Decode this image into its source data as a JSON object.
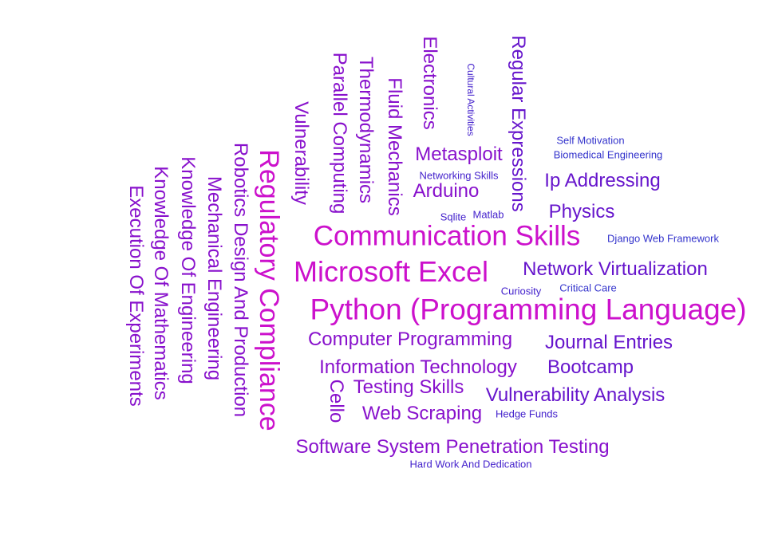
{
  "colors": {
    "magenta": "#cc11cc",
    "purple": "#8811cc",
    "violet": "#6615cc",
    "indigo": "#4422cc",
    "blue": "#3333cc"
  },
  "words": [
    {
      "text": "Python (Programming Language)",
      "size": 37,
      "color": "magenta",
      "vertical": false
    },
    {
      "text": "Communication Skills",
      "size": 35,
      "color": "magenta",
      "vertical": false
    },
    {
      "text": "Microsoft Excel",
      "size": 36,
      "color": "magenta",
      "vertical": false
    },
    {
      "text": "Regulatory Compliance",
      "size": 34,
      "color": "magenta",
      "vertical": true
    },
    {
      "text": "Computer Programming",
      "size": 24,
      "color": "purple",
      "vertical": false
    },
    {
      "text": "Information Technology",
      "size": 24,
      "color": "purple",
      "vertical": false
    },
    {
      "text": "Software System Penetration Testing",
      "size": 24,
      "color": "purple",
      "vertical": false
    },
    {
      "text": "Web Scraping",
      "size": 24,
      "color": "purple",
      "vertical": false
    },
    {
      "text": "Testing Skills",
      "size": 24,
      "color": "purple",
      "vertical": false
    },
    {
      "text": "Robotics Design And Production",
      "size": 24,
      "color": "purple",
      "vertical": true
    },
    {
      "text": "Mechanical Engineering",
      "size": 24,
      "color": "purple",
      "vertical": true
    },
    {
      "text": "Knowledge Of Engineering",
      "size": 24,
      "color": "purple",
      "vertical": true
    },
    {
      "text": "Knowledge Of Mathematics",
      "size": 24,
      "color": "purple",
      "vertical": true
    },
    {
      "text": "Execution Of Experiments",
      "size": 24,
      "color": "purple",
      "vertical": true
    },
    {
      "text": "Cello",
      "size": 24,
      "color": "purple",
      "vertical": true
    },
    {
      "text": "Vulnerability",
      "size": 24,
      "color": "purple",
      "vertical": true
    },
    {
      "text": "Parallel Computing",
      "size": 24,
      "color": "purple",
      "vertical": true
    },
    {
      "text": "Thermodynamics",
      "size": 24,
      "color": "purple",
      "vertical": true
    },
    {
      "text": "Fluid Mechanics",
      "size": 24,
      "color": "purple",
      "vertical": true
    },
    {
      "text": "Electronics",
      "size": 24,
      "color": "purple",
      "vertical": true
    },
    {
      "text": "Metasploit",
      "size": 24,
      "color": "purple",
      "vertical": false
    },
    {
      "text": "Arduino",
      "size": 24,
      "color": "purple",
      "vertical": false
    },
    {
      "text": "Regular Expressions",
      "size": 24,
      "color": "violet",
      "vertical": true
    },
    {
      "text": "Ip Addressing",
      "size": 24,
      "color": "violet",
      "vertical": false
    },
    {
      "text": "Physics",
      "size": 24,
      "color": "violet",
      "vertical": false
    },
    {
      "text": "Network Virtualization",
      "size": 24,
      "color": "violet",
      "vertical": false
    },
    {
      "text": "Journal Entries",
      "size": 24,
      "color": "violet",
      "vertical": false
    },
    {
      "text": "Bootcamp",
      "size": 24,
      "color": "violet",
      "vertical": false
    },
    {
      "text": "Vulnerability Analysis",
      "size": 24,
      "color": "violet",
      "vertical": false
    },
    {
      "text": "Cultural Activities",
      "size": 12,
      "color": "indigo",
      "vertical": true
    },
    {
      "text": "Networking Skills",
      "size": 13,
      "color": "indigo",
      "vertical": false
    },
    {
      "text": "Sqlite",
      "size": 13,
      "color": "indigo",
      "vertical": false
    },
    {
      "text": "Matlab",
      "size": 13,
      "color": "indigo",
      "vertical": false
    },
    {
      "text": "Self Motivation",
      "size": 13,
      "color": "blue",
      "vertical": false
    },
    {
      "text": "Biomedical Engineering",
      "size": 13,
      "color": "blue",
      "vertical": false
    },
    {
      "text": "Django Web Framework",
      "size": 13,
      "color": "blue",
      "vertical": false
    },
    {
      "text": "Curiosity",
      "size": 13,
      "color": "indigo",
      "vertical": false
    },
    {
      "text": "Critical Care",
      "size": 13,
      "color": "blue",
      "vertical": false
    },
    {
      "text": "Hedge Funds",
      "size": 13,
      "color": "indigo",
      "vertical": false
    },
    {
      "text": "Hard Work And Dedication",
      "size": 13,
      "color": "indigo",
      "vertical": false
    }
  ]
}
